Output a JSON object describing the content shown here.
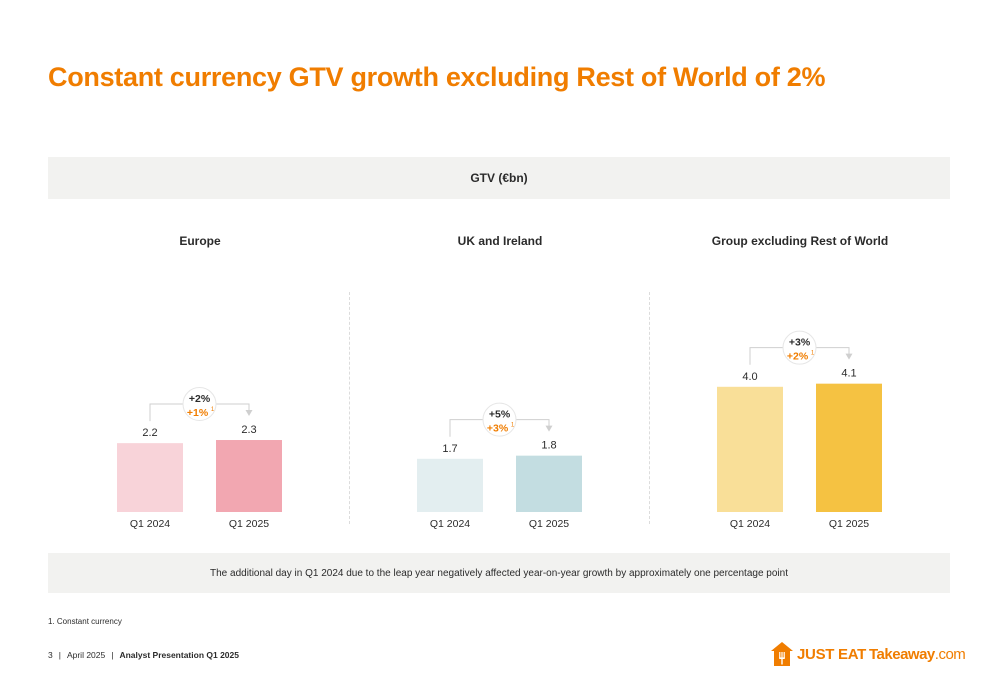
{
  "title": "Constant currency GTV growth excluding Rest of World of 2%",
  "band_label": "GTV (€bn)",
  "note": "The additional day in Q1 2024 due to the leap year negatively affected year-on-year growth by approximately one percentage point",
  "footnote": "1. Constant currency",
  "footer": {
    "page": "3",
    "date": "April 2025",
    "presentation": "Analyst Presentation Q1 2025",
    "sep": "|"
  },
  "logo": {
    "text_a": "JUST EAT",
    "text_b": "Takeaway",
    "text_c": ".com",
    "icon": "house-fork-icon"
  },
  "colors": {
    "accent": "#f07d00",
    "europe_2024": "#f8d3d9",
    "europe_2025": "#f2a7b1",
    "uk_2024": "#e3eef0",
    "uk_2025": "#c3dde1",
    "group_2024": "#f9df98",
    "group_2025": "#f5c242"
  },
  "chart_data": [
    {
      "type": "bar",
      "title": "Europe",
      "categories": [
        "Q1 2024",
        "Q1 2025"
      ],
      "values": [
        2.2,
        2.3
      ],
      "value_labels": [
        "2.2",
        "2.3"
      ],
      "growth": "+2%",
      "growth_cc": "+1%",
      "growth_cc_sup": "1",
      "ylim": [
        0,
        4.6
      ]
    },
    {
      "type": "bar",
      "title": "UK and Ireland",
      "categories": [
        "Q1 2024",
        "Q1 2025"
      ],
      "values": [
        1.7,
        1.8
      ],
      "value_labels": [
        "1.7",
        "1.8"
      ],
      "growth": "+5%",
      "growth_cc": "+3%",
      "growth_cc_sup": "1",
      "ylim": [
        0,
        4.6
      ]
    },
    {
      "type": "bar",
      "title": "Group excluding Rest of World",
      "categories": [
        "Q1 2024",
        "Q1 2025"
      ],
      "values": [
        4.0,
        4.1
      ],
      "value_labels": [
        "4.0",
        "4.1"
      ],
      "growth": "+3%",
      "growth_cc": "+2%",
      "growth_cc_sup": "1",
      "ylim": [
        0,
        4.6
      ]
    }
  ]
}
